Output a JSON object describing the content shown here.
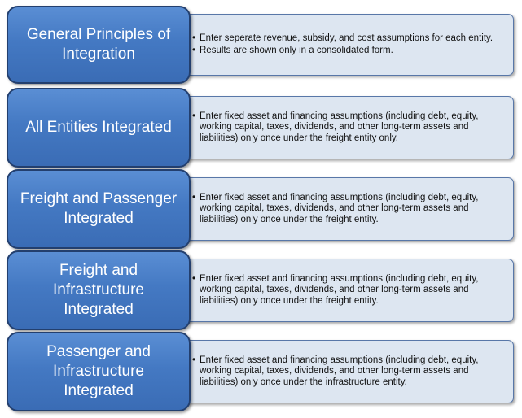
{
  "rows": [
    {
      "title": "General Principles of Integration",
      "bullets": [
        "Enter seperate revenue, subsidy, and cost assumptions for each entity.",
        "Results are shown only in a consolidated form."
      ]
    },
    {
      "title": "All Entities Integrated",
      "bullets": [
        "Enter fixed asset and financing assumptions (including debt, equity, working capital, taxes, dividends, and other long-term assets and liabilities) only once under the freight entity only."
      ]
    },
    {
      "title": "Freight and Passenger Integrated",
      "bullets": [
        "Enter fixed asset and financing assumptions (including debt, equity, working capital, taxes, dividends, and other long-term assets and liabilities) only once under the freight entity."
      ]
    },
    {
      "title": "Freight and Infrastructure Integrated",
      "bullets": [
        "Enter fixed asset and financing assumptions (including debt, equity, working capital, taxes, dividends, and other long-term assets and liabilities) only once under the freight entity."
      ]
    },
    {
      "title": "Passenger and Infrastructure Integrated",
      "bullets": [
        "Enter fixed asset and financing assumptions (including debt, equity, working capital, taxes, dividends, and other long-term assets and liabilities) only once under the infrastructure entity."
      ]
    }
  ]
}
